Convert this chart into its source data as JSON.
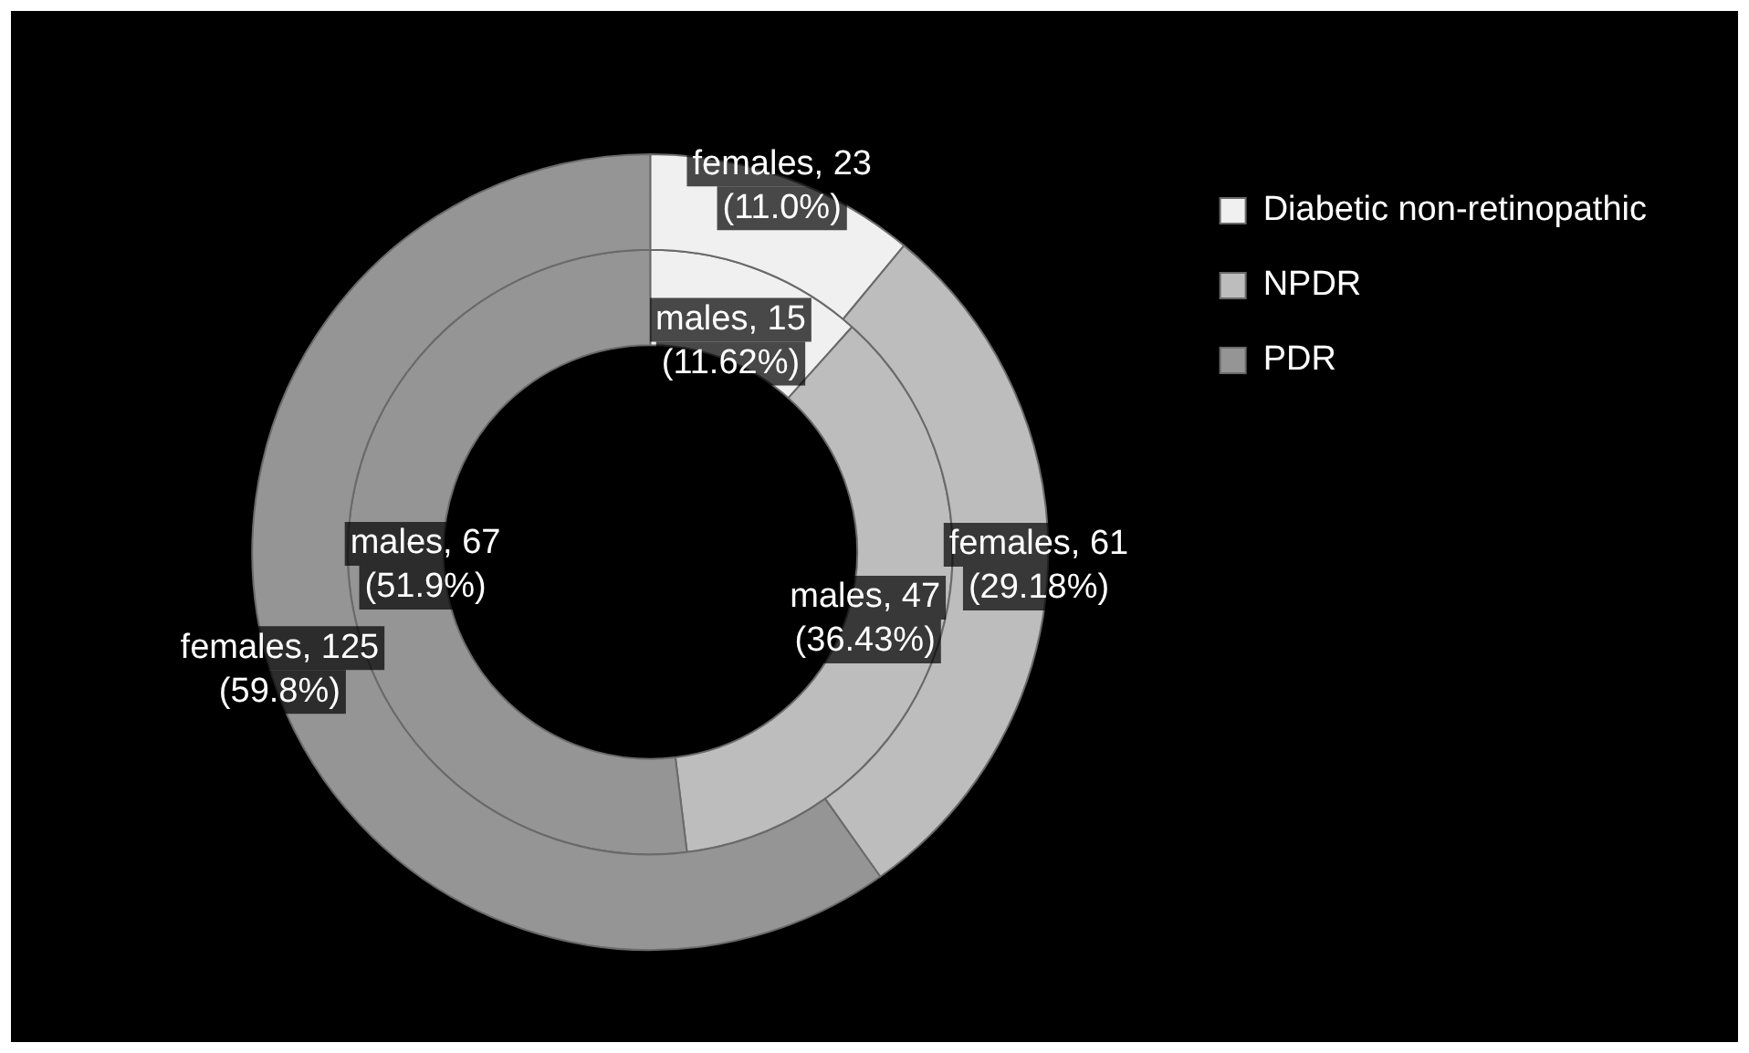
{
  "chart_data": {
    "type": "donut",
    "categories": [
      "Diabetic non-retinopathic",
      "NPDR",
      "PDR"
    ],
    "colors": [
      "#f0f0f0",
      "#bdbdbd",
      "#959595"
    ],
    "legend": "top right",
    "series": [
      {
        "values": [
          23,
          61,
          125
        ],
        "value_labels": [
          "females, 23 (11.0%)",
          "females, 61 (29.18%)",
          "females, 125 (59.8%)"
        ]
      },
      {
        "values": [
          15,
          47,
          67
        ],
        "value_labels": [
          "males, 15 (11.62%)",
          "males, 47 (36.43%)",
          "males, 67 (51.9%)"
        ]
      }
    ]
  }
}
